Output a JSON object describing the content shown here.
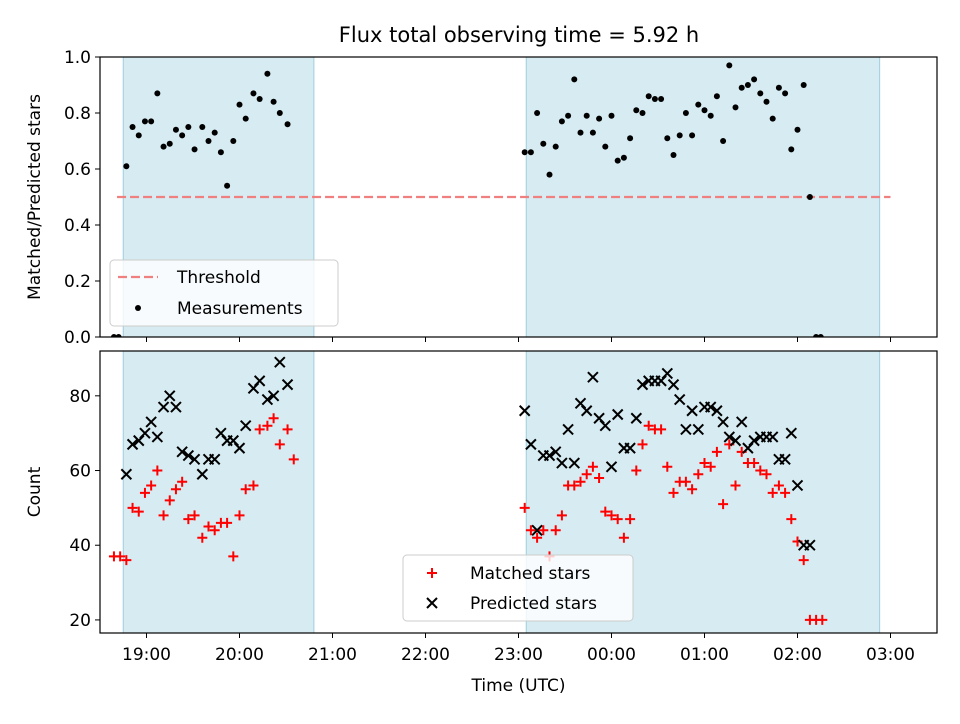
{
  "title": "Flux total observing time = 5.92 h",
  "chart_data": [
    {
      "type": "scatter",
      "ylabel": "Matched/Predicted stars",
      "ylim": [
        0.0,
        1.0
      ],
      "yticks": [
        "0.0",
        "0.2",
        "0.4",
        "0.6",
        "0.8",
        "1.0"
      ],
      "xlim": [
        "18:30",
        "03:30"
      ],
      "legend_position": "lower-left",
      "shaded_intervals": [
        [
          "18:45",
          "20:48"
        ],
        [
          "23:05",
          "02:53"
        ]
      ],
      "threshold": {
        "name": "Threshold",
        "value": 0.5,
        "from": "18:41",
        "to": "03:00",
        "color": "#f07f7f",
        "style": "dashed"
      },
      "series": [
        {
          "name": "Measurements",
          "color": "#000000",
          "marker": "dot",
          "points": [
            [
              "18:39",
              0.0
            ],
            [
              "18:42",
              0.0
            ],
            [
              "18:47",
              0.61
            ],
            [
              "18:51",
              0.75
            ],
            [
              "18:55",
              0.72
            ],
            [
              "18:59",
              0.77
            ],
            [
              "19:03",
              0.77
            ],
            [
              "19:07",
              0.87
            ],
            [
              "19:11",
              0.68
            ],
            [
              "19:15",
              0.69
            ],
            [
              "19:19",
              0.74
            ],
            [
              "19:23",
              0.72
            ],
            [
              "19:27",
              0.75
            ],
            [
              "19:31",
              0.67
            ],
            [
              "19:36",
              0.75
            ],
            [
              "19:40",
              0.7
            ],
            [
              "19:44",
              0.73
            ],
            [
              "19:48",
              0.66
            ],
            [
              "19:52",
              0.54
            ],
            [
              "19:56",
              0.7
            ],
            [
              "20:00",
              0.83
            ],
            [
              "20:04",
              0.78
            ],
            [
              "20:09",
              0.87
            ],
            [
              "20:13",
              0.85
            ],
            [
              "20:18",
              0.94
            ],
            [
              "20:22",
              0.84
            ],
            [
              "20:26",
              0.8
            ],
            [
              "20:31",
              0.76
            ],
            [
              "23:04",
              0.66
            ],
            [
              "23:08",
              0.66
            ],
            [
              "23:12",
              0.8
            ],
            [
              "23:16",
              0.69
            ],
            [
              "23:20",
              0.58
            ],
            [
              "23:24",
              0.68
            ],
            [
              "23:28",
              0.77
            ],
            [
              "23:32",
              0.79
            ],
            [
              "23:36",
              0.92
            ],
            [
              "23:40",
              0.73
            ],
            [
              "23:44",
              0.79
            ],
            [
              "23:48",
              0.73
            ],
            [
              "23:52",
              0.78
            ],
            [
              "23:56",
              0.68
            ],
            [
              "00:00",
              0.79
            ],
            [
              "00:04",
              0.63
            ],
            [
              "00:08",
              0.64
            ],
            [
              "00:12",
              0.71
            ],
            [
              "00:16",
              0.81
            ],
            [
              "00:20",
              0.8
            ],
            [
              "00:24",
              0.86
            ],
            [
              "00:28",
              0.85
            ],
            [
              "00:32",
              0.85
            ],
            [
              "00:36",
              0.71
            ],
            [
              "00:40",
              0.65
            ],
            [
              "00:44",
              0.72
            ],
            [
              "00:48",
              0.8
            ],
            [
              "00:52",
              0.72
            ],
            [
              "00:56",
              0.83
            ],
            [
              "01:00",
              0.81
            ],
            [
              "01:04",
              0.79
            ],
            [
              "01:08",
              0.86
            ],
            [
              "01:12",
              0.7
            ],
            [
              "01:16",
              0.97
            ],
            [
              "01:20",
              0.82
            ],
            [
              "01:24",
              0.89
            ],
            [
              "01:28",
              0.9
            ],
            [
              "01:32",
              0.92
            ],
            [
              "01:36",
              0.87
            ],
            [
              "01:40",
              0.84
            ],
            [
              "01:44",
              0.78
            ],
            [
              "01:48",
              0.89
            ],
            [
              "01:52",
              0.87
            ],
            [
              "01:56",
              0.67
            ],
            [
              "02:00",
              0.74
            ],
            [
              "02:04",
              0.9
            ],
            [
              "02:08",
              0.5
            ],
            [
              "02:12",
              0.0
            ],
            [
              "02:15",
              0.0
            ]
          ]
        }
      ]
    },
    {
      "type": "scatter",
      "ylabel": "Count",
      "xlabel": "Time (UTC)",
      "ylim": [
        16.5,
        92
      ],
      "yticks": [
        "20",
        "40",
        "60",
        "80"
      ],
      "xlim": [
        "18:30",
        "03:30"
      ],
      "xticks": [
        "19:00",
        "20:00",
        "21:00",
        "22:00",
        "23:00",
        "00:00",
        "01:00",
        "02:00",
        "03:00"
      ],
      "legend_position": "lower-center",
      "shaded_intervals": [
        [
          "18:45",
          "20:48"
        ],
        [
          "23:05",
          "02:53"
        ]
      ],
      "series": [
        {
          "name": "Matched stars",
          "color": "#ff0000",
          "marker": "plus",
          "points": [
            [
              "18:39",
              37
            ],
            [
              "18:43",
              37
            ],
            [
              "18:47",
              36
            ],
            [
              "18:51",
              50
            ],
            [
              "18:55",
              49
            ],
            [
              "18:59",
              54
            ],
            [
              "19:03",
              56
            ],
            [
              "19:07",
              60
            ],
            [
              "19:11",
              48
            ],
            [
              "19:15",
              52
            ],
            [
              "19:19",
              55
            ],
            [
              "19:23",
              57
            ],
            [
              "19:27",
              47
            ],
            [
              "19:31",
              48
            ],
            [
              "19:36",
              42
            ],
            [
              "19:40",
              45
            ],
            [
              "19:44",
              44
            ],
            [
              "19:48",
              46
            ],
            [
              "19:52",
              46
            ],
            [
              "19:56",
              37
            ],
            [
              "20:00",
              48
            ],
            [
              "20:04",
              55
            ],
            [
              "20:09",
              56
            ],
            [
              "20:13",
              71
            ],
            [
              "20:18",
              72
            ],
            [
              "20:22",
              74
            ],
            [
              "20:26",
              67
            ],
            [
              "20:31",
              71
            ],
            [
              "20:35",
              63
            ],
            [
              "23:04",
              50
            ],
            [
              "23:08",
              44
            ],
            [
              "23:12",
              42
            ],
            [
              "23:16",
              44
            ],
            [
              "23:20",
              37
            ],
            [
              "23:24",
              44
            ],
            [
              "23:28",
              48
            ],
            [
              "23:32",
              56
            ],
            [
              "23:36",
              56
            ],
            [
              "23:40",
              57
            ],
            [
              "23:44",
              59
            ],
            [
              "23:48",
              61
            ],
            [
              "23:52",
              58
            ],
            [
              "23:56",
              49
            ],
            [
              "00:00",
              48
            ],
            [
              "00:04",
              47
            ],
            [
              "00:08",
              42
            ],
            [
              "00:12",
              47
            ],
            [
              "00:16",
              60
            ],
            [
              "00:20",
              67
            ],
            [
              "00:24",
              72
            ],
            [
              "00:28",
              71
            ],
            [
              "00:32",
              71
            ],
            [
              "00:36",
              61
            ],
            [
              "00:40",
              54
            ],
            [
              "00:44",
              57
            ],
            [
              "00:48",
              57
            ],
            [
              "00:52",
              55
            ],
            [
              "00:56",
              59
            ],
            [
              "01:00",
              62
            ],
            [
              "01:04",
              61
            ],
            [
              "01:08",
              65
            ],
            [
              "01:12",
              51
            ],
            [
              "01:16",
              67
            ],
            [
              "01:20",
              56
            ],
            [
              "01:24",
              65
            ],
            [
              "01:28",
              62
            ],
            [
              "01:32",
              62
            ],
            [
              "01:36",
              60
            ],
            [
              "01:40",
              59
            ],
            [
              "01:44",
              54
            ],
            [
              "01:48",
              56
            ],
            [
              "01:52",
              54
            ],
            [
              "01:56",
              47
            ],
            [
              "02:00",
              41
            ],
            [
              "02:04",
              36
            ],
            [
              "02:08",
              20
            ],
            [
              "02:12",
              20
            ],
            [
              "02:16",
              20
            ]
          ]
        },
        {
          "name": "Predicted stars",
          "color": "#000000",
          "marker": "cross",
          "points": [
            [
              "18:47",
              59
            ],
            [
              "18:51",
              67
            ],
            [
              "18:55",
              68
            ],
            [
              "18:59",
              70
            ],
            [
              "19:03",
              73
            ],
            [
              "19:07",
              69
            ],
            [
              "19:11",
              77
            ],
            [
              "19:15",
              80
            ],
            [
              "19:19",
              77
            ],
            [
              "19:23",
              65
            ],
            [
              "19:27",
              64
            ],
            [
              "19:31",
              63
            ],
            [
              "19:36",
              59
            ],
            [
              "19:40",
              63
            ],
            [
              "19:44",
              63
            ],
            [
              "19:48",
              70
            ],
            [
              "19:52",
              68
            ],
            [
              "19:56",
              68
            ],
            [
              "20:00",
              66
            ],
            [
              "20:04",
              72
            ],
            [
              "20:09",
              82
            ],
            [
              "20:13",
              84
            ],
            [
              "20:18",
              79
            ],
            [
              "20:22",
              80
            ],
            [
              "20:26",
              89
            ],
            [
              "20:31",
              83
            ],
            [
              "23:04",
              76
            ],
            [
              "23:08",
              67
            ],
            [
              "23:12",
              44
            ],
            [
              "23:16",
              64
            ],
            [
              "23:20",
              64
            ],
            [
              "23:24",
              65
            ],
            [
              "23:28",
              62
            ],
            [
              "23:32",
              71
            ],
            [
              "23:36",
              62
            ],
            [
              "23:40",
              78
            ],
            [
              "23:44",
              76
            ],
            [
              "23:48",
              85
            ],
            [
              "23:52",
              74
            ],
            [
              "23:56",
              72
            ],
            [
              "00:00",
              61
            ],
            [
              "00:04",
              75
            ],
            [
              "00:08",
              66
            ],
            [
              "00:12",
              66
            ],
            [
              "00:16",
              74
            ],
            [
              "00:20",
              83
            ],
            [
              "00:24",
              84
            ],
            [
              "00:28",
              84
            ],
            [
              "00:32",
              84
            ],
            [
              "00:36",
              86
            ],
            [
              "00:40",
              83
            ],
            [
              "00:44",
              79
            ],
            [
              "00:48",
              71
            ],
            [
              "00:52",
              76
            ],
            [
              "00:56",
              71
            ],
            [
              "01:00",
              77
            ],
            [
              "01:04",
              77
            ],
            [
              "01:08",
              76
            ],
            [
              "01:12",
              73
            ],
            [
              "01:16",
              69
            ],
            [
              "01:20",
              68
            ],
            [
              "01:24",
              73
            ],
            [
              "01:28",
              66
            ],
            [
              "01:32",
              68
            ],
            [
              "01:36",
              69
            ],
            [
              "01:40",
              69
            ],
            [
              "01:44",
              69
            ],
            [
              "01:48",
              63
            ],
            [
              "01:52",
              63
            ],
            [
              "01:56",
              70
            ],
            [
              "02:00",
              56
            ],
            [
              "02:04",
              40
            ],
            [
              "02:08",
              40
            ]
          ]
        }
      ]
    }
  ]
}
